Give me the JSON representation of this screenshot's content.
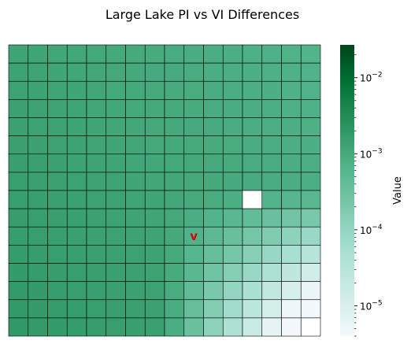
{
  "chart_data": {
    "type": "heatmap",
    "title": "Large Lake PI vs VI Differences",
    "xlabel": "",
    "ylabel": "",
    "rows": 16,
    "cols": 16,
    "grid": true,
    "colorbar": {
      "label": "Value",
      "scale": "log",
      "range": [
        4e-06,
        0.027
      ],
      "tick_values": [
        1e-05,
        0.0001,
        0.001,
        0.01
      ],
      "tick_labels": [
        {
          "base": "10",
          "exp": "−5"
        },
        {
          "base": "10",
          "exp": "−4"
        },
        {
          "base": "10",
          "exp": "−3"
        },
        {
          "base": "10",
          "exp": "−2"
        }
      ],
      "colors": [
        "#f3f8fc",
        "#a6dfd0",
        "#52b48a",
        "#007032",
        "#00441b"
      ]
    },
    "cell_model": {
      "description": "log10 of cell value per row/col",
      "origin_log10": -2.9,
      "row_slope_log10": 0.012,
      "col_slope_log10": -0.018,
      "decay_center": [
        7.5,
        7.5
      ],
      "decay_log10": -0.055
    },
    "missing_cells": [
      [
        8,
        12
      ],
      [
        15,
        15
      ]
    ],
    "annotations": [
      {
        "text": "v",
        "row": 10,
        "col": 9,
        "color": "#dd0000"
      }
    ]
  }
}
